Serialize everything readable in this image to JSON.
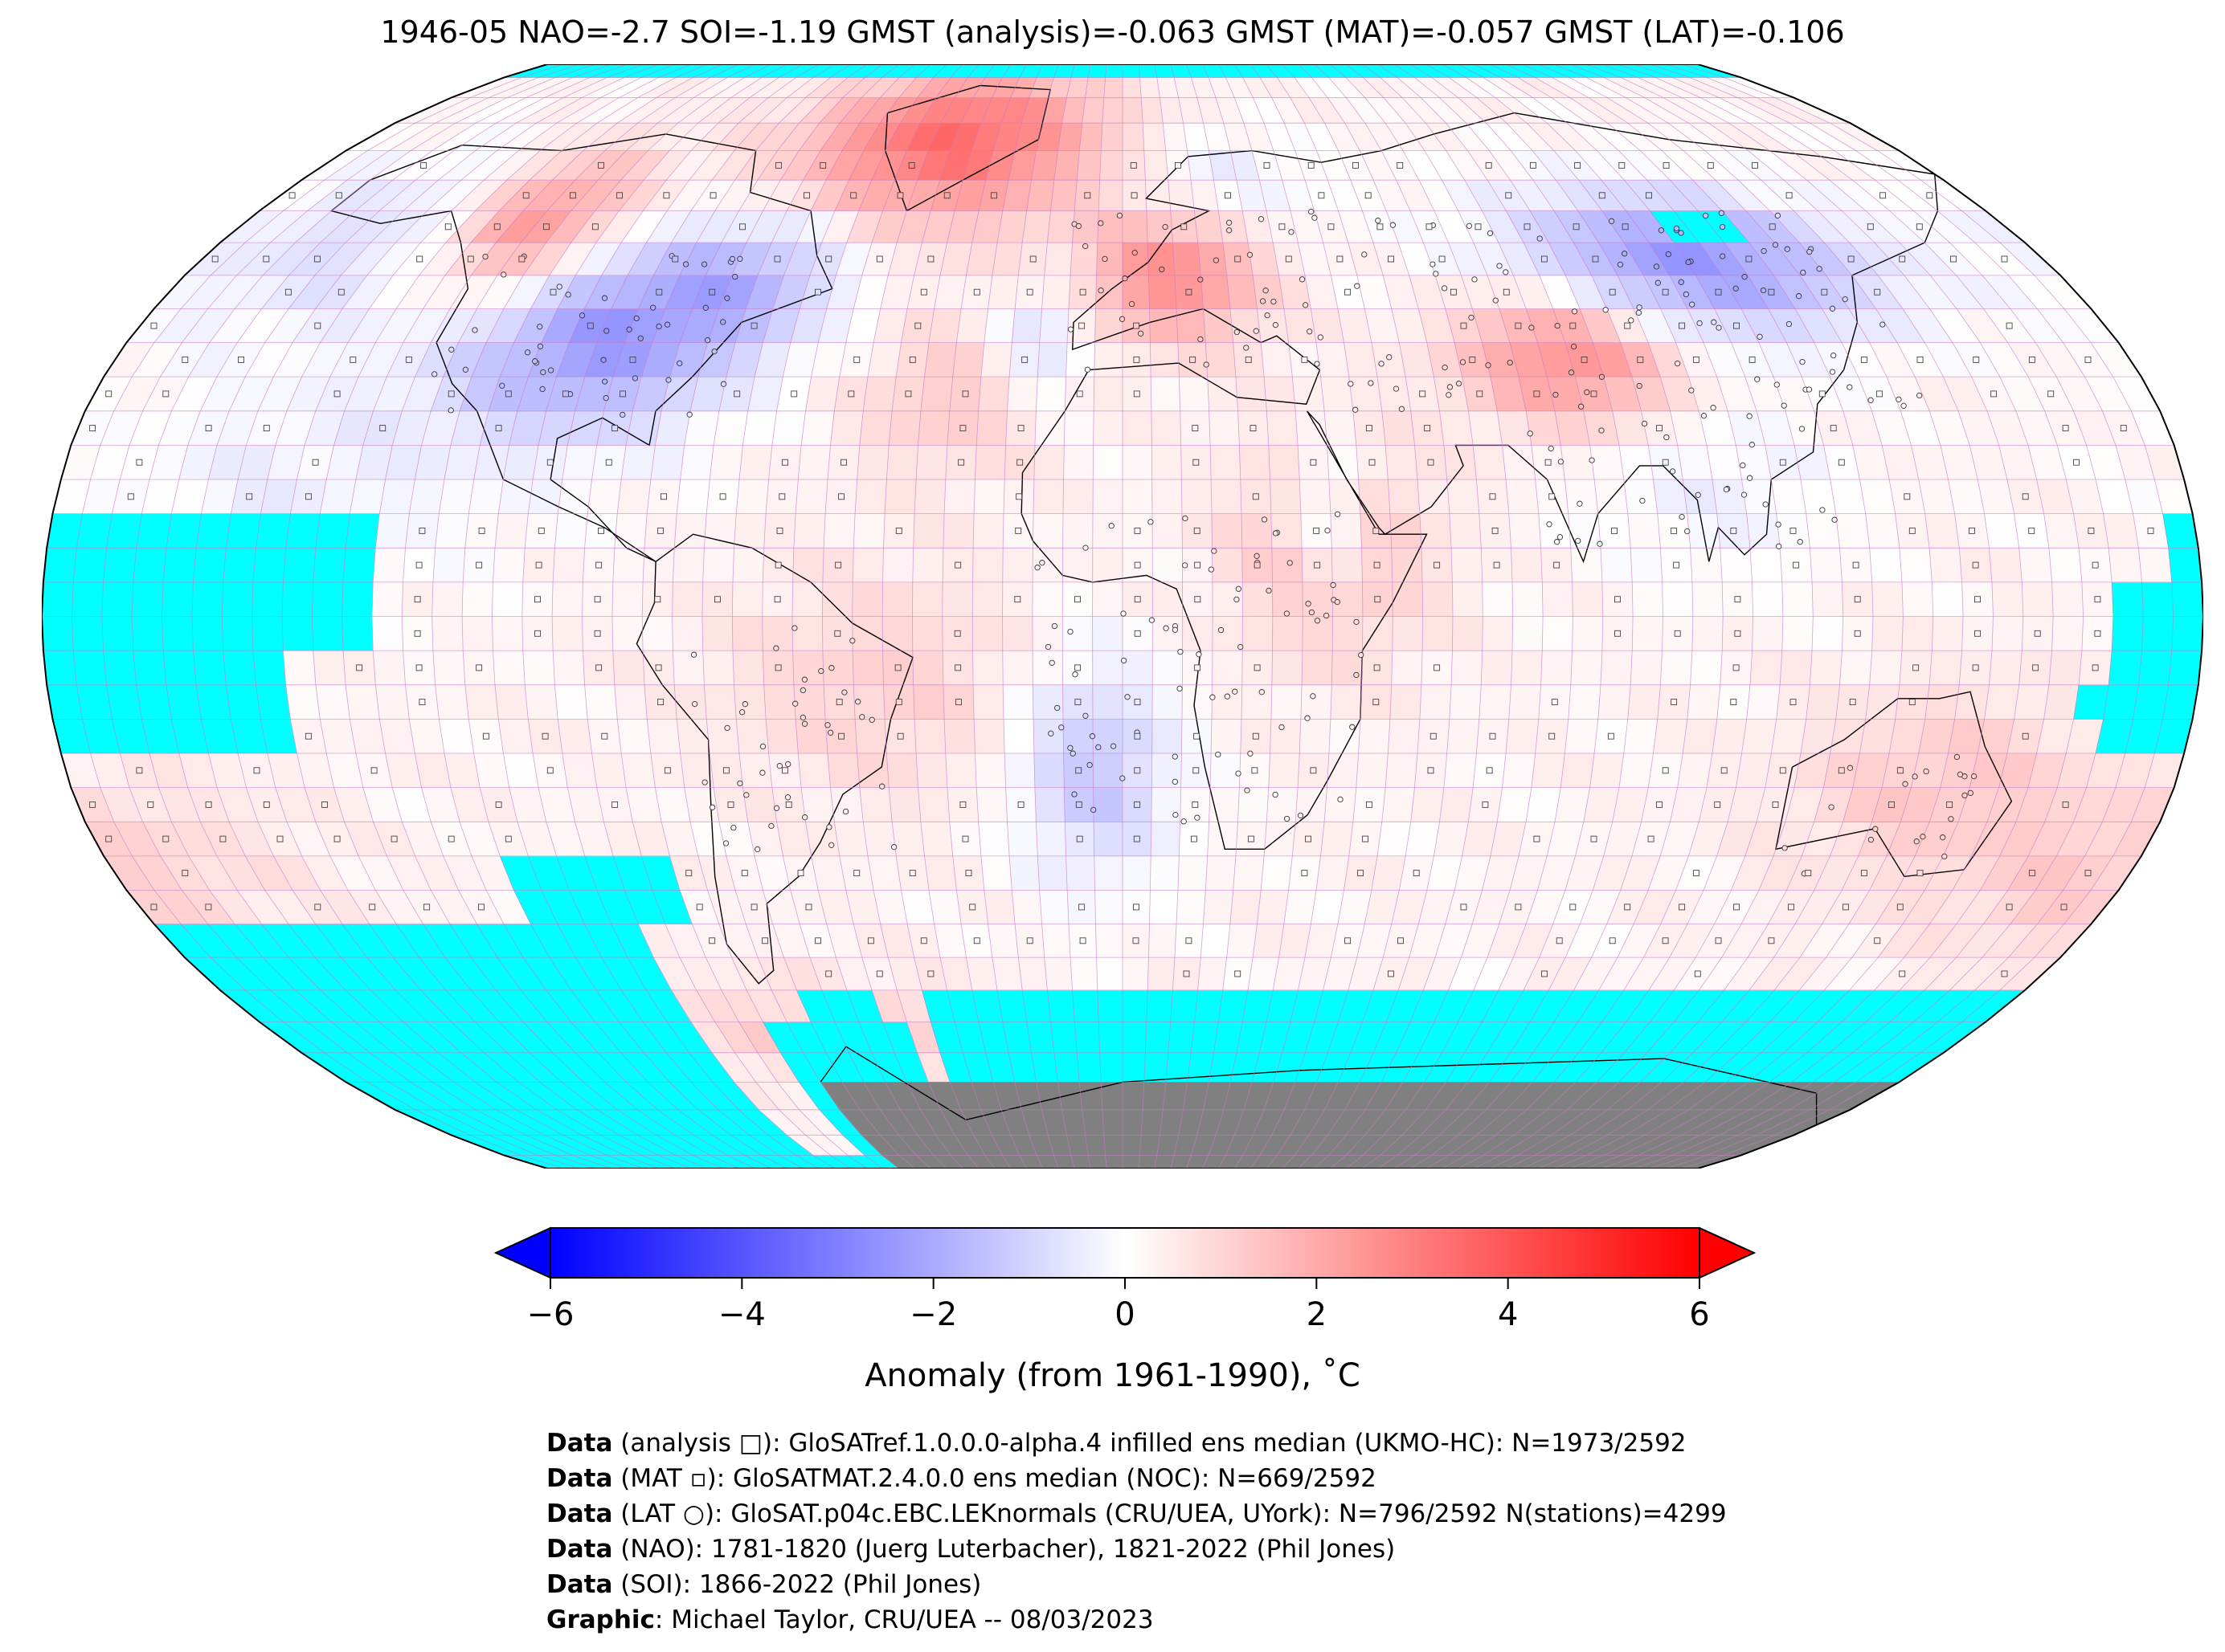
{
  "title": "1946-05 NAO=-2.7 SOI=-1.19 GMST (analysis)=-0.063 GMST (MAT)=-0.057 GMST (LAT)=-0.106",
  "map": {
    "projection": "Robinson",
    "grid": "5° latitude x 5° longitude cells",
    "colors": {
      "no_data": "#00ffff",
      "land_mask": "#808080",
      "grid_line": "#c57cc5",
      "outline": "#000000"
    },
    "markers": [
      "analysis square",
      "MAT square",
      "LAT circle"
    ]
  },
  "colorbar": {
    "min": -6,
    "max": 6,
    "cmap": "bwr",
    "extend": "both",
    "ticks": [
      "−6",
      "−4",
      "−2",
      "0",
      "2",
      "4",
      "6"
    ],
    "label": "Anomaly (from 1961-1990), ˚C"
  },
  "credits": [
    {
      "bold": "Data",
      "text": " (analysis □): GloSATref.1.0.0.0-alpha.4 infilled ens median (UKMO-HC): N=1973/2592"
    },
    {
      "bold": "Data",
      "text": " (MAT ▫): GloSATMAT.2.4.0.0 ens median (NOC): N=669/2592"
    },
    {
      "bold": "Data",
      "text": " (LAT ○): GloSAT.p04c.EBC.LEKnormals (CRU/UEA, UYork): N=796/2592 N(stations)=4299"
    },
    {
      "bold": "Data",
      "text": " (NAO): 1781-1820 (Juerg Luterbacher), 1821-2022 (Phil Jones)"
    },
    {
      "bold": "Data",
      "text": " (SOI): 1866-2022 (Phil Jones)"
    },
    {
      "bold": "Graphic",
      "text": ": Michael Taylor, CRU/UEA -- 08/03/2023"
    }
  ]
}
